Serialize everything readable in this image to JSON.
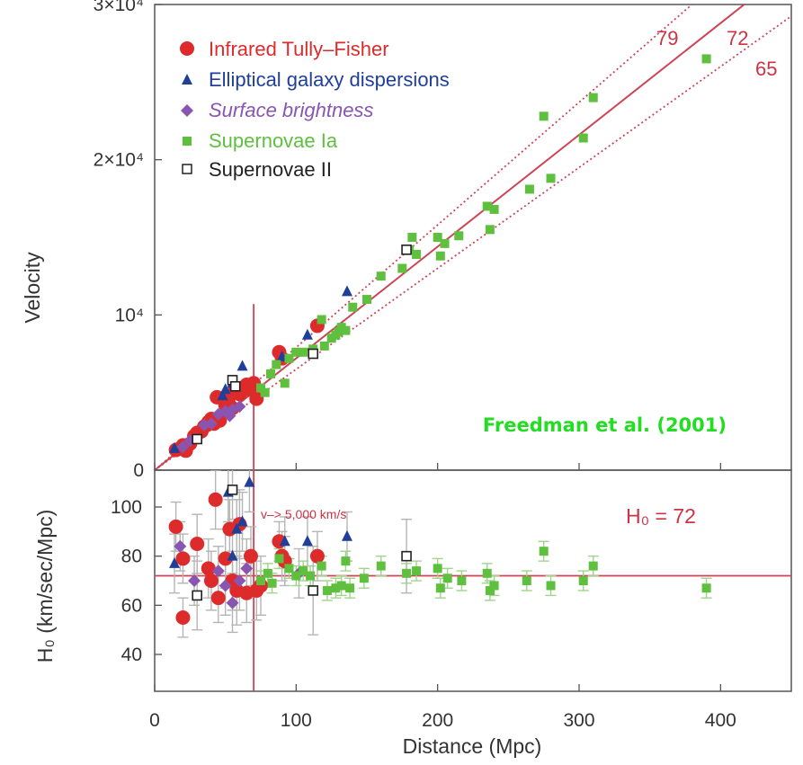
{
  "chart_data": [
    {
      "panel": "top",
      "type": "scatter",
      "ylabel": "Velocity",
      "ylim": [
        0,
        30000
      ],
      "xlim": [
        0,
        450
      ],
      "y_ticks": [
        0,
        10000,
        20000,
        30000
      ],
      "y_tick_labels": [
        "0",
        "10⁴",
        "2×10⁴",
        "3×10⁴"
      ],
      "grid": false,
      "legend_placement": "top-left",
      "annotation": "Freedman et al. (2001)",
      "fit_lines": [
        {
          "label": "79",
          "slope": 79,
          "style": "dotted",
          "color": "#cc4455"
        },
        {
          "label": "72",
          "slope": 72,
          "style": "solid",
          "color": "#cc4455"
        },
        {
          "label": "65",
          "slope": 65,
          "style": "dotted",
          "color": "#cc4455"
        }
      ],
      "cut_line_x": 70,
      "series": [
        {
          "name": "Infrared Tully–Fisher",
          "marker": "circle",
          "color": "#dd2b2b",
          "points": [
            [
              15,
              1300
            ],
            [
              18,
              1400
            ],
            [
              20,
              1600
            ],
            [
              22,
              1250
            ],
            [
              25,
              1700
            ],
            [
              28,
              2200
            ],
            [
              30,
              2400
            ],
            [
              33,
              2500
            ],
            [
              35,
              2800
            ],
            [
              38,
              3100
            ],
            [
              40,
              3300
            ],
            [
              42,
              3000
            ],
            [
              44,
              4700
            ],
            [
              46,
              3200
            ],
            [
              50,
              4200
            ],
            [
              52,
              4500
            ],
            [
              55,
              4000
            ],
            [
              57,
              5200
            ],
            [
              60,
              4900
            ],
            [
              62,
              5300
            ],
            [
              65,
              5500
            ],
            [
              67,
              5200
            ],
            [
              70,
              5600
            ],
            [
              72,
              4600
            ],
            [
              88,
              7600
            ],
            [
              90,
              7200
            ],
            [
              115,
              9300
            ]
          ]
        },
        {
          "name": "Elliptical galaxy dispersions",
          "marker": "triangle",
          "color": "#1f3f99",
          "points": [
            [
              14,
              1400
            ],
            [
              48,
              4800
            ],
            [
              50,
              5200
            ],
            [
              55,
              5600
            ],
            [
              62,
              6700
            ],
            [
              90,
              7300
            ],
            [
              108,
              8700
            ],
            [
              136,
              11500
            ]
          ]
        },
        {
          "name": "Surface brightness",
          "marker": "diamond",
          "color": "#8a55b0",
          "points": [
            [
              20,
              1500
            ],
            [
              25,
              1900
            ],
            [
              35,
              2900
            ],
            [
              40,
              3000
            ],
            [
              45,
              3600
            ],
            [
              50,
              3800
            ],
            [
              53,
              3500
            ],
            [
              55,
              3900
            ],
            [
              60,
              4100
            ]
          ]
        },
        {
          "name": "Supernovae Ia",
          "marker": "square",
          "color": "#5fbf3f",
          "points": [
            [
              75,
              5300
            ],
            [
              78,
              5000
            ],
            [
              82,
              6200
            ],
            [
              86,
              6800
            ],
            [
              92,
              5600
            ],
            [
              95,
              7200
            ],
            [
              100,
              7600
            ],
            [
              105,
              7600
            ],
            [
              112,
              7800
            ],
            [
              118,
              9700
            ],
            [
              120,
              8000
            ],
            [
              125,
              8500
            ],
            [
              128,
              8700
            ],
            [
              130,
              8900
            ],
            [
              132,
              9200
            ],
            [
              135,
              9000
            ],
            [
              140,
              10500
            ],
            [
              150,
              11000
            ],
            [
              160,
              12500
            ],
            [
              175,
              13000
            ],
            [
              180,
              14200
            ],
            [
              182,
              15000
            ],
            [
              185,
              13900
            ],
            [
              200,
              15000
            ],
            [
              202,
              13800
            ],
            [
              205,
              14600
            ],
            [
              215,
              15100
            ],
            [
              235,
              17000
            ],
            [
              237,
              15500
            ],
            [
              240,
              16800
            ],
            [
              265,
              18100
            ],
            [
              275,
              22800
            ],
            [
              280,
              18800
            ],
            [
              303,
              21400
            ],
            [
              310,
              24000
            ],
            [
              390,
              26500
            ]
          ]
        },
        {
          "name": "Supernovae II",
          "marker": "open-square",
          "color": "#222222",
          "points": [
            [
              30,
              2000
            ],
            [
              55,
              5800
            ],
            [
              57,
              5400
            ],
            [
              112,
              7500
            ],
            [
              178,
              14200
            ]
          ]
        }
      ]
    },
    {
      "panel": "bottom",
      "type": "scatter",
      "xlabel": "Distance (Mpc)",
      "ylabel": "H₀ (km/sec/Mpc)",
      "xlim": [
        0,
        450
      ],
      "ylim": [
        25,
        115
      ],
      "x_ticks": [
        0,
        100,
        200,
        300,
        400
      ],
      "y_ticks": [
        40,
        60,
        80,
        100
      ],
      "grid": false,
      "h0_label": "H₀ = 72",
      "h0_line": 72,
      "cut_line_x": 70,
      "cut_annotation": "v–> 5,000 km/s",
      "series": [
        {
          "name": "Infrared Tully–Fisher",
          "marker": "circle",
          "color": "#dd2b2b",
          "points": [
            [
              15,
              92
            ],
            [
              20,
              55
            ],
            [
              20,
              79
            ],
            [
              30,
              85
            ],
            [
              38,
              75
            ],
            [
              40,
              70
            ],
            [
              43,
              103
            ],
            [
              45,
              63
            ],
            [
              50,
              79
            ],
            [
              53,
              91
            ],
            [
              55,
              70
            ],
            [
              58,
              66
            ],
            [
              60,
              93
            ],
            [
              65,
              65
            ],
            [
              68,
              80
            ],
            [
              72,
              66
            ],
            [
              75,
              68
            ],
            [
              88,
              86
            ],
            [
              90,
              80
            ],
            [
              92,
              78
            ],
            [
              115,
              80
            ]
          ],
          "errors": [
            10,
            8,
            10,
            12,
            12,
            12,
            12,
            10,
            12,
            12,
            12,
            14,
            14,
            12,
            12,
            12,
            12,
            8,
            10,
            10,
            10
          ]
        },
        {
          "name": "Elliptical galaxy dispersions",
          "marker": "triangle",
          "color": "#1f3f99",
          "points": [
            [
              14,
              77
            ],
            [
              52,
              106
            ],
            [
              55,
              80
            ],
            [
              58,
              91
            ],
            [
              62,
              94
            ],
            [
              67,
              110
            ],
            [
              92,
              86
            ],
            [
              108,
              86
            ],
            [
              136,
              88
            ]
          ],
          "errors": [
            12,
            12,
            12,
            12,
            12,
            12,
            10,
            10,
            10
          ]
        },
        {
          "name": "Surface brightness",
          "marker": "diamond",
          "color": "#8a55b0",
          "points": [
            [
              18,
              84
            ],
            [
              28,
              70
            ],
            [
              45,
              74
            ],
            [
              50,
              68
            ],
            [
              55,
              61
            ],
            [
              60,
              70
            ],
            [
              65,
              75
            ],
            [
              102,
              73
            ]
          ],
          "errors": [
            10,
            10,
            10,
            12,
            12,
            12,
            12,
            10
          ]
        },
        {
          "name": "Supernovae Ia",
          "marker": "square",
          "color": "#5fbf3f",
          "points": [
            [
              75,
              70
            ],
            [
              80,
              73
            ],
            [
              83,
              69
            ],
            [
              88,
              79
            ],
            [
              95,
              75
            ],
            [
              100,
              72
            ],
            [
              105,
              74
            ],
            [
              110,
              72
            ],
            [
              118,
              76
            ],
            [
              122,
              66
            ],
            [
              128,
              67
            ],
            [
              132,
              68
            ],
            [
              135,
              78
            ],
            [
              138,
              67
            ],
            [
              148,
              71
            ],
            [
              160,
              76
            ],
            [
              178,
              73
            ],
            [
              185,
              74
            ],
            [
              200,
              75
            ],
            [
              202,
              67
            ],
            [
              207,
              71
            ],
            [
              217,
              70
            ],
            [
              235,
              73
            ],
            [
              237,
              66
            ],
            [
              240,
              68
            ],
            [
              263,
              70
            ],
            [
              275,
              82
            ],
            [
              280,
              68
            ],
            [
              303,
              70
            ],
            [
              310,
              76
            ],
            [
              390,
              67
            ]
          ],
          "errors": [
            4,
            4,
            4,
            4,
            4,
            4,
            4,
            4,
            4,
            4,
            4,
            4,
            4,
            4,
            4,
            4,
            4,
            4,
            4,
            4,
            4,
            4,
            4,
            4,
            4,
            4,
            4,
            4,
            4,
            4,
            4
          ]
        },
        {
          "name": "Supernovae II",
          "marker": "open-square",
          "color": "#222222",
          "points": [
            [
              30,
              64
            ],
            [
              55,
              107
            ],
            [
              112,
              66
            ],
            [
              178,
              80
            ]
          ],
          "errors": [
            14,
            12,
            18,
            15
          ]
        }
      ]
    }
  ]
}
